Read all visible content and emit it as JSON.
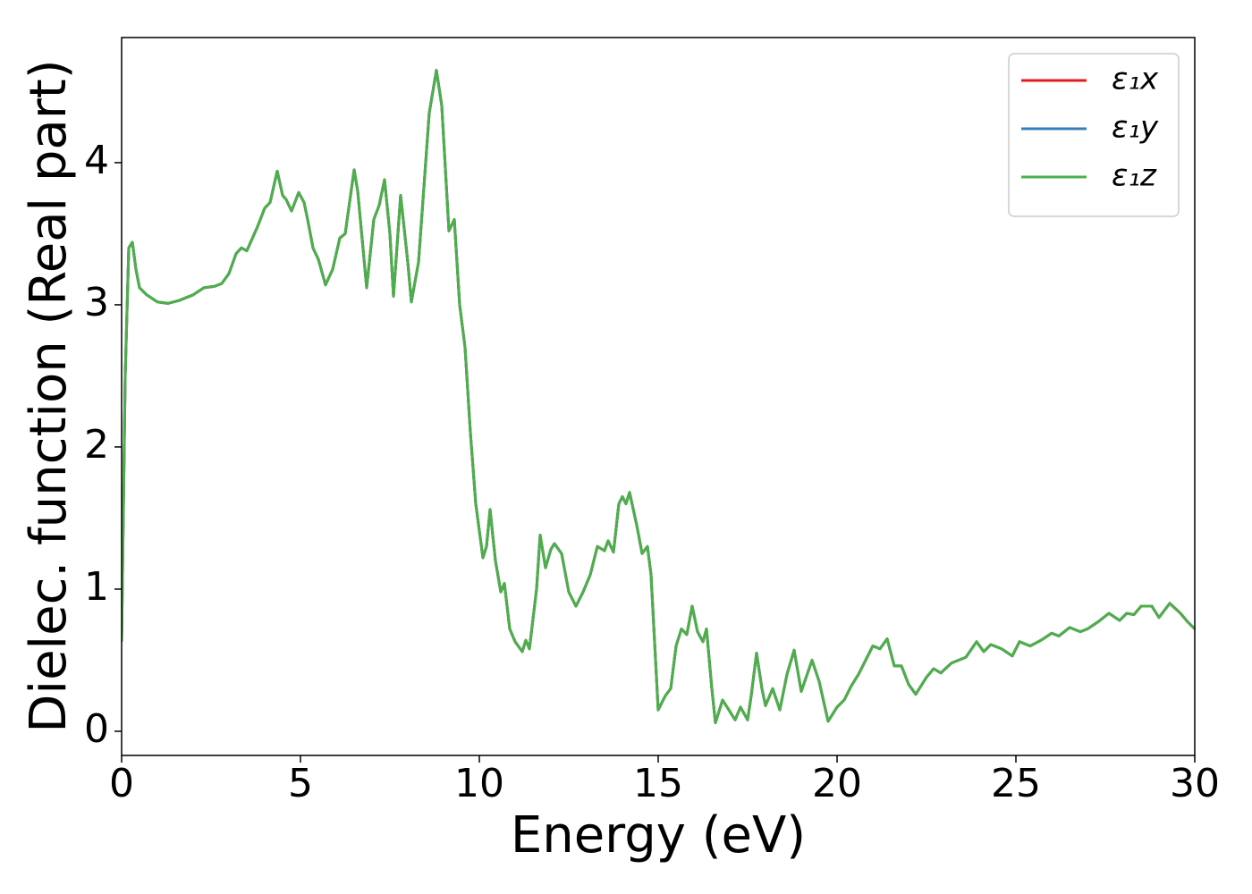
{
  "chart_data": {
    "type": "line",
    "xlabel": "Energy (eV)",
    "ylabel": "Dielec. function (Real part)",
    "xlim": [
      0,
      30
    ],
    "xticks": [
      0,
      5,
      10,
      15,
      20,
      25,
      30
    ],
    "ylim": [
      -0.17,
      4.88
    ],
    "yticks": [
      0,
      1,
      2,
      3,
      4
    ],
    "grid": false,
    "legend": "upper right",
    "x": [
      0.0,
      0.1,
      0.2,
      0.3,
      0.4,
      0.5,
      0.7,
      1.0,
      1.3,
      1.6,
      2.0,
      2.3,
      2.6,
      2.8,
      3.0,
      3.2,
      3.35,
      3.5,
      3.8,
      4.0,
      4.15,
      4.35,
      4.5,
      4.6,
      4.75,
      4.95,
      5.1,
      5.2,
      5.35,
      5.5,
      5.7,
      5.9,
      6.1,
      6.25,
      6.5,
      6.6,
      6.85,
      7.05,
      7.2,
      7.35,
      7.5,
      7.6,
      7.8,
      8.0,
      8.1,
      8.3,
      8.6,
      8.8,
      8.95,
      9.15,
      9.3,
      9.45,
      9.6,
      9.75,
      9.9,
      10.1,
      10.2,
      10.3,
      10.45,
      10.6,
      10.7,
      10.85,
      11.0,
      11.2,
      11.3,
      11.4,
      11.6,
      11.7,
      11.85,
      12.0,
      12.1,
      12.3,
      12.5,
      12.7,
      12.9,
      13.1,
      13.3,
      13.5,
      13.6,
      13.75,
      13.9,
      14.0,
      14.1,
      14.2,
      14.4,
      14.55,
      14.7,
      14.8,
      15.0,
      15.2,
      15.35,
      15.5,
      15.65,
      15.8,
      15.95,
      16.1,
      16.25,
      16.35,
      16.5,
      16.6,
      16.8,
      17.0,
      17.15,
      17.3,
      17.5,
      17.6,
      17.75,
      17.9,
      18.0,
      18.2,
      18.4,
      18.6,
      18.8,
      19.0,
      19.3,
      19.5,
      19.75,
      20.0,
      20.2,
      20.4,
      20.6,
      20.8,
      21.0,
      21.2,
      21.4,
      21.6,
      21.8,
      22.0,
      22.2,
      22.5,
      22.7,
      22.9,
      23.2,
      23.6,
      23.9,
      24.1,
      24.3,
      24.6,
      24.9,
      25.1,
      25.4,
      25.7,
      26.0,
      26.2,
      26.5,
      26.8,
      27.0,
      27.3,
      27.6,
      27.9,
      28.1,
      28.3,
      28.5,
      28.8,
      29.0,
      29.3,
      29.6,
      29.8,
      30.0
    ],
    "series": [
      {
        "name": "ε₁x",
        "color": "#e41a1c",
        "values": [
          0.63,
          2.5,
          3.4,
          3.44,
          3.25,
          3.12,
          3.07,
          3.02,
          3.01,
          3.03,
          3.07,
          3.12,
          3.13,
          3.15,
          3.22,
          3.36,
          3.4,
          3.38,
          3.55,
          3.68,
          3.72,
          3.94,
          3.77,
          3.74,
          3.66,
          3.79,
          3.72,
          3.6,
          3.4,
          3.32,
          3.14,
          3.25,
          3.47,
          3.5,
          3.95,
          3.8,
          3.12,
          3.6,
          3.7,
          3.88,
          3.5,
          3.06,
          3.77,
          3.3,
          3.02,
          3.3,
          4.35,
          4.65,
          4.4,
          3.52,
          3.6,
          3.0,
          2.7,
          2.1,
          1.6,
          1.22,
          1.3,
          1.56,
          1.2,
          0.98,
          1.04,
          0.72,
          0.63,
          0.56,
          0.64,
          0.58,
          1.0,
          1.38,
          1.15,
          1.28,
          1.32,
          1.25,
          0.98,
          0.88,
          0.98,
          1.1,
          1.3,
          1.27,
          1.34,
          1.26,
          1.6,
          1.65,
          1.6,
          1.68,
          1.45,
          1.25,
          1.3,
          1.1,
          0.15,
          0.25,
          0.3,
          0.6,
          0.72,
          0.68,
          0.88,
          0.7,
          0.63,
          0.72,
          0.3,
          0.06,
          0.22,
          0.14,
          0.08,
          0.17,
          0.08,
          0.25,
          0.55,
          0.3,
          0.18,
          0.3,
          0.15,
          0.4,
          0.57,
          0.28,
          0.5,
          0.35,
          0.07,
          0.17,
          0.22,
          0.32,
          0.4,
          0.5,
          0.6,
          0.58,
          0.65,
          0.46,
          0.46,
          0.33,
          0.26,
          0.38,
          0.44,
          0.41,
          0.48,
          0.52,
          0.63,
          0.56,
          0.61,
          0.58,
          0.53,
          0.63,
          0.6,
          0.64,
          0.69,
          0.67,
          0.73,
          0.7,
          0.72,
          0.77,
          0.83,
          0.78,
          0.83,
          0.82,
          0.88,
          0.88,
          0.8,
          0.9,
          0.83,
          0.77,
          0.72
        ]
      },
      {
        "name": "ε₁y",
        "color": "#377eb8",
        "values": [
          0.63,
          2.5,
          3.4,
          3.44,
          3.25,
          3.12,
          3.07,
          3.02,
          3.01,
          3.03,
          3.07,
          3.12,
          3.13,
          3.15,
          3.22,
          3.36,
          3.4,
          3.38,
          3.55,
          3.68,
          3.72,
          3.94,
          3.77,
          3.74,
          3.66,
          3.79,
          3.72,
          3.6,
          3.4,
          3.32,
          3.14,
          3.25,
          3.47,
          3.5,
          3.95,
          3.8,
          3.12,
          3.6,
          3.7,
          3.88,
          3.5,
          3.06,
          3.77,
          3.3,
          3.02,
          3.3,
          4.35,
          4.65,
          4.4,
          3.52,
          3.6,
          3.0,
          2.7,
          2.1,
          1.6,
          1.22,
          1.3,
          1.56,
          1.2,
          0.98,
          1.04,
          0.72,
          0.63,
          0.56,
          0.64,
          0.58,
          1.0,
          1.38,
          1.15,
          1.28,
          1.32,
          1.25,
          0.98,
          0.88,
          0.98,
          1.1,
          1.3,
          1.27,
          1.34,
          1.26,
          1.6,
          1.65,
          1.6,
          1.68,
          1.45,
          1.25,
          1.3,
          1.1,
          0.15,
          0.25,
          0.3,
          0.6,
          0.72,
          0.68,
          0.88,
          0.7,
          0.63,
          0.72,
          0.3,
          0.06,
          0.22,
          0.14,
          0.08,
          0.17,
          0.08,
          0.25,
          0.55,
          0.3,
          0.18,
          0.3,
          0.15,
          0.4,
          0.57,
          0.28,
          0.5,
          0.35,
          0.07,
          0.17,
          0.22,
          0.32,
          0.4,
          0.5,
          0.6,
          0.58,
          0.65,
          0.46,
          0.46,
          0.33,
          0.26,
          0.38,
          0.44,
          0.41,
          0.48,
          0.52,
          0.63,
          0.56,
          0.61,
          0.58,
          0.53,
          0.63,
          0.6,
          0.64,
          0.69,
          0.67,
          0.73,
          0.7,
          0.72,
          0.77,
          0.83,
          0.78,
          0.83,
          0.82,
          0.88,
          0.88,
          0.8,
          0.9,
          0.83,
          0.77,
          0.72
        ]
      },
      {
        "name": "ε₁z",
        "color": "#4daf4a",
        "values": [
          0.63,
          2.5,
          3.4,
          3.44,
          3.25,
          3.12,
          3.07,
          3.02,
          3.01,
          3.03,
          3.07,
          3.12,
          3.13,
          3.15,
          3.22,
          3.36,
          3.4,
          3.38,
          3.55,
          3.68,
          3.72,
          3.94,
          3.77,
          3.74,
          3.66,
          3.79,
          3.72,
          3.6,
          3.4,
          3.32,
          3.14,
          3.25,
          3.47,
          3.5,
          3.95,
          3.8,
          3.12,
          3.6,
          3.7,
          3.88,
          3.5,
          3.06,
          3.77,
          3.3,
          3.02,
          3.3,
          4.35,
          4.65,
          4.4,
          3.52,
          3.6,
          3.0,
          2.7,
          2.1,
          1.6,
          1.22,
          1.3,
          1.56,
          1.2,
          0.98,
          1.04,
          0.72,
          0.63,
          0.56,
          0.64,
          0.58,
          1.0,
          1.38,
          1.15,
          1.28,
          1.32,
          1.25,
          0.98,
          0.88,
          0.98,
          1.1,
          1.3,
          1.27,
          1.34,
          1.26,
          1.6,
          1.65,
          1.6,
          1.68,
          1.45,
          1.25,
          1.3,
          1.1,
          0.15,
          0.25,
          0.3,
          0.6,
          0.72,
          0.68,
          0.88,
          0.7,
          0.63,
          0.72,
          0.3,
          0.06,
          0.22,
          0.14,
          0.08,
          0.17,
          0.08,
          0.25,
          0.55,
          0.3,
          0.18,
          0.3,
          0.15,
          0.4,
          0.57,
          0.28,
          0.5,
          0.35,
          0.07,
          0.17,
          0.22,
          0.32,
          0.4,
          0.5,
          0.6,
          0.58,
          0.65,
          0.46,
          0.46,
          0.33,
          0.26,
          0.38,
          0.44,
          0.41,
          0.48,
          0.52,
          0.63,
          0.56,
          0.61,
          0.58,
          0.53,
          0.63,
          0.6,
          0.64,
          0.69,
          0.67,
          0.73,
          0.7,
          0.72,
          0.77,
          0.83,
          0.78,
          0.83,
          0.82,
          0.88,
          0.88,
          0.8,
          0.9,
          0.83,
          0.77,
          0.72
        ]
      }
    ]
  }
}
